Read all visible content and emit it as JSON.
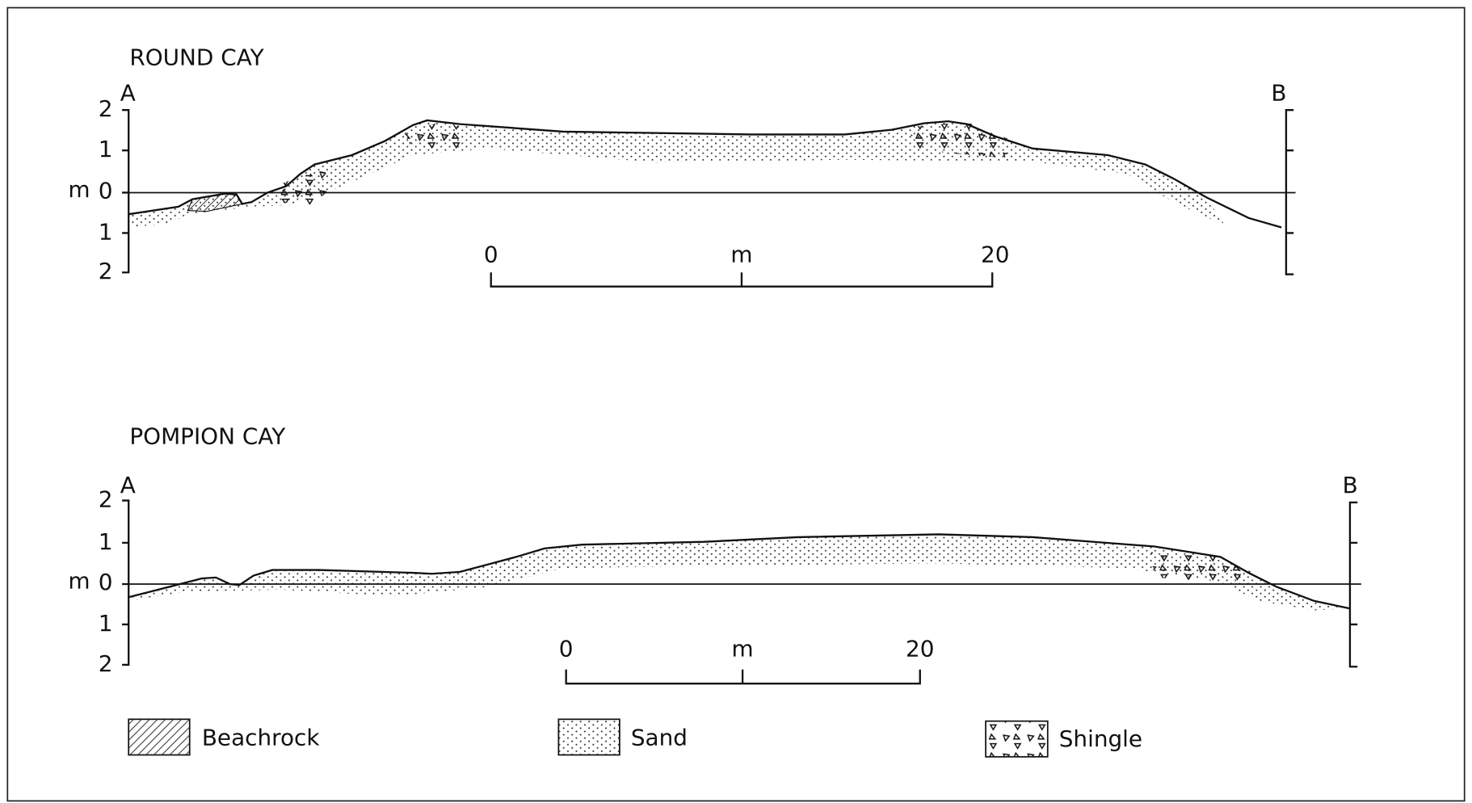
{
  "profiles": [
    {
      "title": "ROUND CAY",
      "start": "A",
      "end": "B",
      "unit": "m",
      "axis_labels": [
        "2",
        "1",
        "0",
        "1",
        "2"
      ],
      "scale": {
        "start": "0",
        "unit": "m",
        "end": "20"
      }
    },
    {
      "title": "POMPION CAY",
      "start": "A",
      "end": "B",
      "unit": "m",
      "axis_labels": [
        "2",
        "1",
        "0",
        "1",
        "2"
      ],
      "scale": {
        "start": "0",
        "unit": "m",
        "end": "20"
      }
    }
  ],
  "legend": [
    {
      "label": "Beachrock"
    },
    {
      "label": "Sand"
    },
    {
      "label": "Shingle"
    }
  ]
}
